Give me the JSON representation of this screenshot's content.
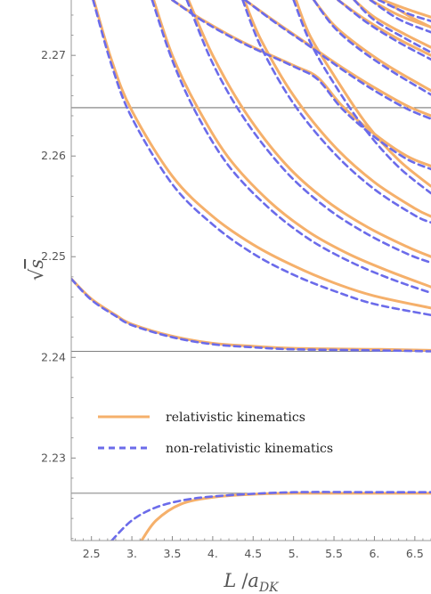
{
  "chart_data": {
    "type": "line",
    "xlabel": "L / a_DK",
    "xlabel_parts": {
      "main": "L",
      "sep": "/",
      "sym": "a",
      "sub": "DK"
    },
    "ylabel": "√s",
    "ylabel_parts": {
      "root": "√",
      "sym": "s"
    },
    "xlim": [
      2.25,
      6.7
    ],
    "ylim": [
      2.2218,
      2.2755
    ],
    "x_ticks": [
      2.5,
      3.0,
      3.5,
      4.0,
      4.5,
      5.0,
      5.5,
      6.0,
      6.5
    ],
    "x_tick_labels": [
      "2.5",
      "3.",
      "3.5",
      "4.",
      "4.5",
      "5.",
      "5.5",
      "6.",
      "6.5"
    ],
    "y_ticks": [
      2.23,
      2.24,
      2.25,
      2.26,
      2.27
    ],
    "y_tick_labels": [
      "2.23",
      "2.24",
      "2.25",
      "2.26",
      "2.27"
    ],
    "thresholds": [
      2.2265,
      2.2406,
      2.2648
    ],
    "grid": false,
    "legend_position": "lower-left",
    "colors": {
      "relativistic": "#f5b06b",
      "non_relativistic": "#6b6bea",
      "threshold": "#555555",
      "axis": "#888888"
    },
    "series": [
      {
        "name": "relativistic kinematics",
        "style": "solid",
        "curves": [
          [
            [
              3.12,
              2.2218
            ],
            [
              3.3,
              2.2238
            ],
            [
              3.6,
              2.2254
            ],
            [
              4.0,
              2.2261
            ],
            [
              4.5,
              2.2264
            ],
            [
              5.0,
              2.2265
            ],
            [
              6.0,
              2.2265
            ],
            [
              6.7,
              2.2265
            ]
          ],
          [
            [
              2.25,
              2.2478
            ],
            [
              2.5,
              2.2458
            ],
            [
              2.8,
              2.2442
            ],
            [
              3.0,
              2.2433
            ],
            [
              3.5,
              2.2421
            ],
            [
              4.0,
              2.2414
            ],
            [
              4.5,
              2.2411
            ],
            [
              5.0,
              2.2409
            ],
            [
              6.0,
              2.2408
            ],
            [
              6.7,
              2.2407
            ]
          ],
          [
            [
              2.53,
              2.2755
            ],
            [
              2.75,
              2.2695
            ],
            [
              3.0,
              2.2645
            ],
            [
              3.5,
              2.258
            ],
            [
              4.0,
              2.254
            ],
            [
              4.5,
              2.2512
            ],
            [
              5.0,
              2.2491
            ],
            [
              5.5,
              2.2474
            ],
            [
              6.0,
              2.2461
            ],
            [
              6.7,
              2.2449
            ]
          ],
          [
            [
              3.27,
              2.2755
            ],
            [
              3.5,
              2.27
            ],
            [
              3.8,
              2.265
            ],
            [
              4.2,
              2.2598
            ],
            [
              4.7,
              2.2555
            ],
            [
              5.2,
              2.2524
            ],
            [
              5.7,
              2.2502
            ],
            [
              6.2,
              2.2485
            ],
            [
              6.7,
              2.247
            ]
          ],
          [
            [
              3.7,
              2.2755
            ],
            [
              4.0,
              2.27
            ],
            [
              4.4,
              2.2644
            ],
            [
              4.9,
              2.2592
            ],
            [
              5.4,
              2.2556
            ],
            [
              5.9,
              2.253
            ],
            [
              6.4,
              2.251
            ],
            [
              6.7,
              2.25
            ]
          ],
          [
            [
              4.39,
              2.2755
            ],
            [
              4.6,
              2.2715
            ],
            [
              5.0,
              2.266
            ],
            [
              5.5,
              2.261
            ],
            [
              6.0,
              2.2574
            ],
            [
              6.5,
              2.2548
            ],
            [
              6.7,
              2.254
            ]
          ],
          [
            [
              5.03,
              2.2755
            ],
            [
              5.2,
              2.272
            ],
            [
              5.5,
              2.268
            ],
            [
              5.9,
              2.2632
            ],
            [
              6.3,
              2.2596
            ],
            [
              6.7,
              2.257
            ]
          ],
          [
            [
              3.5,
              2.2755
            ],
            [
              3.9,
              2.2734
            ],
            [
              4.4,
              2.2712
            ],
            [
              5.0,
              2.269
            ],
            [
              5.3,
              2.2678
            ],
            [
              5.6,
              2.265
            ],
            [
              6.0,
              2.2622
            ],
            [
              6.4,
              2.26
            ],
            [
              6.7,
              2.259
            ]
          ],
          [
            [
              4.4,
              2.2755
            ],
            [
              4.8,
              2.2732
            ],
            [
              5.2,
              2.271
            ],
            [
              5.6,
              2.2688
            ],
            [
              6.0,
              2.2668
            ],
            [
              6.4,
              2.265
            ],
            [
              6.7,
              2.264
            ]
          ],
          [
            [
              5.25,
              2.2755
            ],
            [
              5.5,
              2.273
            ],
            [
              5.8,
              2.271
            ],
            [
              6.2,
              2.2688
            ],
            [
              6.7,
              2.2665
            ]
          ],
          [
            [
              5.55,
              2.2755
            ],
            [
              5.9,
              2.2735
            ],
            [
              6.3,
              2.2716
            ],
            [
              6.7,
              2.27
            ]
          ],
          [
            [
              5.75,
              2.2755
            ],
            [
              6.0,
              2.2738
            ],
            [
              6.4,
              2.272
            ],
            [
              6.7,
              2.2708
            ]
          ],
          [
            [
              5.95,
              2.2755
            ],
            [
              6.3,
              2.274
            ],
            [
              6.7,
              2.2728
            ]
          ],
          [
            [
              6.25,
              2.2748
            ],
            [
              6.45,
              2.2738
            ],
            [
              6.7,
              2.2728
            ]
          ],
          [
            [
              6.1,
              2.2755
            ],
            [
              6.4,
              2.2746
            ],
            [
              6.7,
              2.2738
            ]
          ]
        ]
      },
      {
        "name": "non-relativistic kinematics",
        "style": "dashed",
        "curves": [
          [
            [
              2.75,
              2.2218
            ],
            [
              3.0,
              2.2238
            ],
            [
              3.3,
              2.2251
            ],
            [
              3.7,
              2.2259
            ],
            [
              4.2,
              2.2263
            ],
            [
              5.0,
              2.2266
            ],
            [
              6.0,
              2.2266
            ],
            [
              6.7,
              2.2266
            ]
          ],
          [
            [
              2.25,
              2.2478
            ],
            [
              2.5,
              2.2457
            ],
            [
              2.8,
              2.2441
            ],
            [
              3.0,
              2.2432
            ],
            [
              3.5,
              2.242
            ],
            [
              4.0,
              2.2413
            ],
            [
              4.5,
              2.241
            ],
            [
              5.0,
              2.2408
            ],
            [
              6.0,
              2.2407
            ],
            [
              6.7,
              2.2406
            ]
          ],
          [
            [
              2.52,
              2.2755
            ],
            [
              2.75,
              2.269
            ],
            [
              3.0,
              2.2638
            ],
            [
              3.5,
              2.2572
            ],
            [
              4.0,
              2.2532
            ],
            [
              4.5,
              2.2503
            ],
            [
              5.0,
              2.2482
            ],
            [
              5.5,
              2.2466
            ],
            [
              6.0,
              2.2453
            ],
            [
              6.7,
              2.2442
            ]
          ],
          [
            [
              3.25,
              2.2755
            ],
            [
              3.5,
              2.2695
            ],
            [
              3.8,
              2.2642
            ],
            [
              4.2,
              2.259
            ],
            [
              4.7,
              2.2548
            ],
            [
              5.2,
              2.2517
            ],
            [
              5.7,
              2.2495
            ],
            [
              6.2,
              2.2478
            ],
            [
              6.7,
              2.2464
            ]
          ],
          [
            [
              3.68,
              2.2755
            ],
            [
              4.0,
              2.2692
            ],
            [
              4.4,
              2.2636
            ],
            [
              4.9,
              2.2585
            ],
            [
              5.4,
              2.2549
            ],
            [
              5.9,
              2.2523
            ],
            [
              6.4,
              2.2503
            ],
            [
              6.7,
              2.2494
            ]
          ],
          [
            [
              4.37,
              2.2755
            ],
            [
              4.6,
              2.2708
            ],
            [
              5.0,
              2.2652
            ],
            [
              5.5,
              2.2603
            ],
            [
              6.0,
              2.2567
            ],
            [
              6.5,
              2.2541
            ],
            [
              6.7,
              2.2534
            ]
          ],
          [
            [
              5.0,
              2.2755
            ],
            [
              5.2,
              2.2714
            ],
            [
              5.5,
              2.2672
            ],
            [
              5.9,
              2.2625
            ],
            [
              6.3,
              2.2589
            ],
            [
              6.7,
              2.2563
            ]
          ],
          [
            [
              3.5,
              2.2755
            ],
            [
              3.9,
              2.2733
            ],
            [
              4.4,
              2.2711
            ],
            [
              5.0,
              2.2689
            ],
            [
              5.3,
              2.2676
            ],
            [
              5.6,
              2.2647
            ],
            [
              6.0,
              2.2619
            ],
            [
              6.4,
              2.2597
            ],
            [
              6.7,
              2.2587
            ]
          ],
          [
            [
              4.4,
              2.2755
            ],
            [
              4.8,
              2.2731
            ],
            [
              5.2,
              2.2709
            ],
            [
              5.6,
              2.2686
            ],
            [
              6.0,
              2.2665
            ],
            [
              6.4,
              2.2647
            ],
            [
              6.7,
              2.2637
            ]
          ],
          [
            [
              5.25,
              2.2755
            ],
            [
              5.5,
              2.2728
            ],
            [
              5.8,
              2.2707
            ],
            [
              6.2,
              2.2685
            ],
            [
              6.7,
              2.2661
            ]
          ],
          [
            [
              5.55,
              2.2755
            ],
            [
              5.9,
              2.2733
            ],
            [
              6.3,
              2.2713
            ],
            [
              6.7,
              2.2696
            ]
          ],
          [
            [
              5.75,
              2.2755
            ],
            [
              6.0,
              2.2735
            ],
            [
              6.4,
              2.2716
            ],
            [
              6.7,
              2.2703
            ]
          ],
          [
            [
              5.95,
              2.2755
            ],
            [
              6.3,
              2.2736
            ],
            [
              6.7,
              2.2723
            ]
          ],
          [
            [
              6.05,
              2.2755
            ],
            [
              6.4,
              2.2742
            ],
            [
              6.7,
              2.2734
            ]
          ]
        ]
      }
    ]
  }
}
